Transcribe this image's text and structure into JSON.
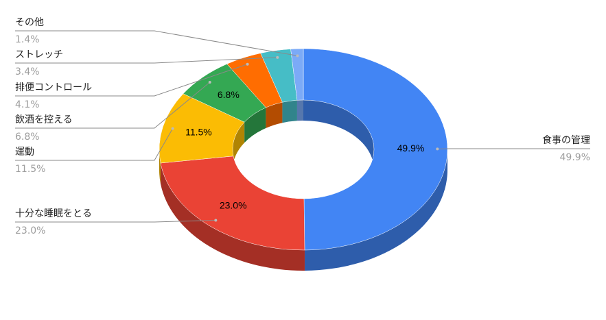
{
  "chart_data": {
    "type": "pie",
    "donut": true,
    "three_d": true,
    "categories": [
      "食事の管理",
      "十分な睡眠をとる",
      "運動",
      "飲酒を控える",
      "排便コントロール",
      "ストレッチ",
      "その他"
    ],
    "values": [
      49.9,
      23.0,
      11.5,
      6.8,
      4.1,
      3.4,
      1.4
    ],
    "value_labels": [
      "49.9%",
      "23.0%",
      "11.5%",
      "6.8%",
      "4.1%",
      "3.4%",
      "1.4%"
    ],
    "colors": [
      "#4285f4",
      "#ea4335",
      "#fbbc04",
      "#34a853",
      "#ff6d01",
      "#46bdc6",
      "#7baaf7"
    ]
  }
}
